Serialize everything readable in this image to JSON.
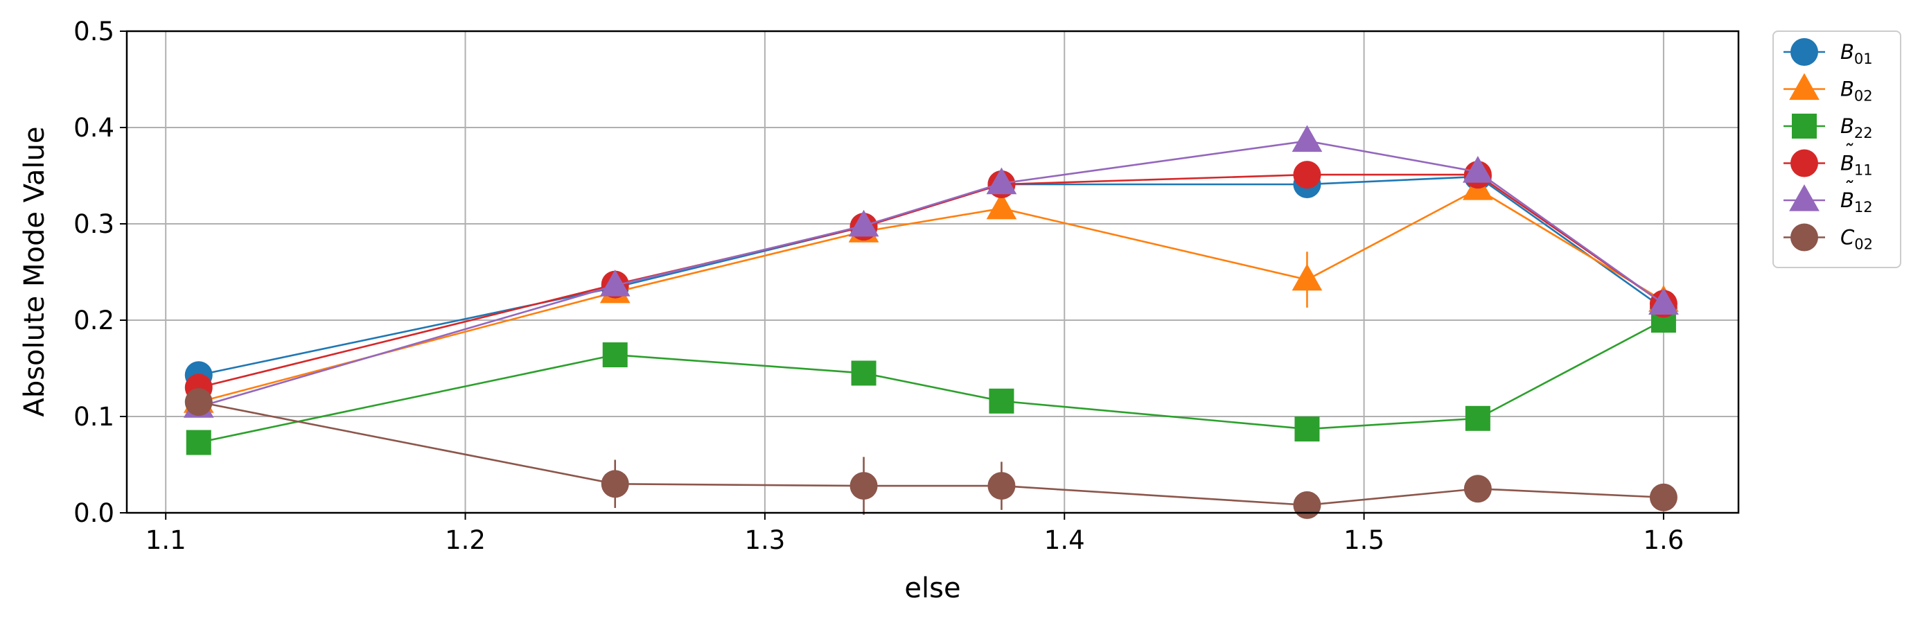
{
  "chart_data": {
    "type": "line",
    "xlabel": "else",
    "ylabel": "Absolute Mode Value",
    "xlim": [
      1.087,
      1.625
    ],
    "ylim": [
      0.0,
      0.5
    ],
    "xticks": [
      1.1,
      1.2,
      1.3,
      1.4,
      1.5,
      1.6
    ],
    "xtick_labels": [
      "1.1",
      "1.2",
      "1.3",
      "1.4",
      "1.5",
      "1.6"
    ],
    "yticks": [
      0.0,
      0.1,
      0.2,
      0.3,
      0.4,
      0.5
    ],
    "ytick_labels": [
      "0.0",
      "0.1",
      "0.2",
      "0.3",
      "0.4",
      "0.5"
    ],
    "grid": true,
    "legend_position": "outside-right-top",
    "x": [
      1.111,
      1.25,
      1.333,
      1.379,
      1.481,
      1.538,
      1.6
    ],
    "series": [
      {
        "id": "B01",
        "base": "B",
        "tilde": false,
        "sub": "01",
        "marker": "circle",
        "color": "#1f77b4",
        "values": [
          0.143,
          0.234,
          0.297,
          0.341,
          0.341,
          0.349,
          0.212
        ],
        "errors": [
          0.004,
          0.004,
          0.004,
          0.004,
          0.004,
          0.004,
          0.004
        ]
      },
      {
        "id": "B02",
        "base": "B",
        "tilde": false,
        "sub": "02",
        "marker": "triangle",
        "color": "#ff7f0e",
        "values": [
          0.115,
          0.229,
          0.292,
          0.316,
          0.242,
          0.336,
          0.22
        ],
        "errors": [
          0.005,
          0.005,
          0.005,
          0.005,
          0.029,
          0.01,
          0.005
        ]
      },
      {
        "id": "B22",
        "base": "B",
        "tilde": false,
        "sub": "22",
        "marker": "square",
        "color": "#2ca02c",
        "values": [
          0.073,
          0.164,
          0.145,
          0.116,
          0.087,
          0.098,
          0.2
        ],
        "errors": [
          0.004,
          0.004,
          0.004,
          0.004,
          0.004,
          0.004,
          0.004
        ]
      },
      {
        "id": "Bt11",
        "base": "B",
        "tilde": true,
        "sub": "11",
        "marker": "circle",
        "color": "#d62728",
        "values": [
          0.13,
          0.237,
          0.297,
          0.341,
          0.351,
          0.351,
          0.217
        ],
        "errors": [
          0.004,
          0.004,
          0.004,
          0.004,
          0.004,
          0.004,
          0.004
        ]
      },
      {
        "id": "Bt12",
        "base": "B",
        "tilde": true,
        "sub": "12",
        "marker": "triangle",
        "color": "#9467bd",
        "values": [
          0.11,
          0.236,
          0.298,
          0.342,
          0.386,
          0.354,
          0.217
        ],
        "errors": [
          0.004,
          0.004,
          0.004,
          0.004,
          0.004,
          0.004,
          0.004
        ]
      },
      {
        "id": "C02",
        "base": "C",
        "tilde": false,
        "sub": "02",
        "marker": "circle",
        "color": "#8c564b",
        "values": [
          0.115,
          0.03,
          0.028,
          0.028,
          0.008,
          0.025,
          0.016
        ],
        "errors": [
          0.005,
          0.025,
          0.03,
          0.025,
          0.008,
          0.004,
          0.004
        ]
      }
    ]
  }
}
